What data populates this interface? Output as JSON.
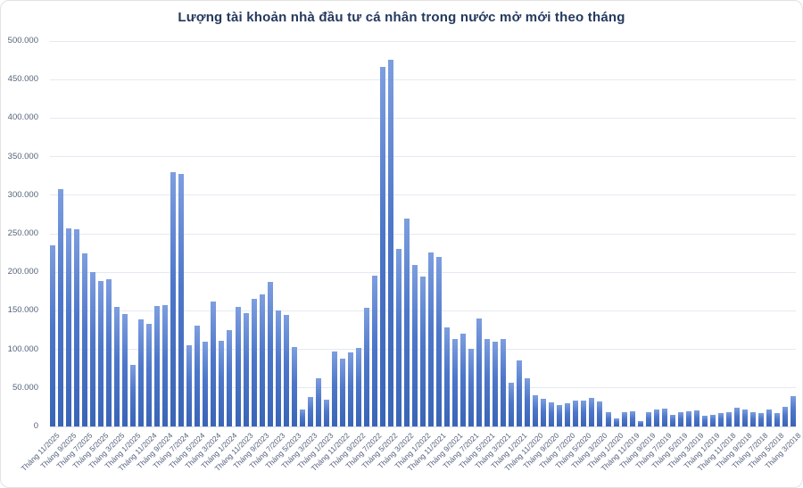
{
  "card": {
    "title": "Lượng tài khoản nhà đầu tư cá nhân trong nước mở mới theo tháng"
  },
  "colors": {
    "title": "#24395e",
    "bar_base": "#4472C4",
    "bar_gradient_top": "#7d9edf",
    "bar_gradient_bottom": "#3a64b6",
    "axis_label": "#55627c",
    "gridline": "#e4e9f1",
    "card_border": "#e2e2e2"
  },
  "chart_data": {
    "type": "bar",
    "title": "Lượng tài khoản nhà đầu tư cá nhân trong nước mở mới theo tháng",
    "xlabel": "",
    "ylabel": "",
    "ylim": [
      0,
      500000
    ],
    "grid": true,
    "legend": false,
    "y_tick_labels": [
      "500.000",
      "450.000",
      "400.000",
      "350.000",
      "300.000",
      "250.000",
      "200.000",
      "150.000",
      "100.000",
      "50.000",
      "0"
    ],
    "x_tick_every": 2,
    "categories": [
      "Tháng 11/2025",
      "Tháng 10/2025",
      "Tháng 9/2025",
      "Tháng 8/2025",
      "Tháng 7/2025",
      "Tháng 6/2025",
      "Tháng 5/2025",
      "Tháng 4/2025",
      "Tháng 3/2025",
      "Tháng 2/2025",
      "Tháng 1/2025",
      "Tháng 12/2024",
      "Tháng 11/2024",
      "Tháng 10/2024",
      "Tháng 9/2024",
      "Tháng 8/2024",
      "Tháng 7/2024",
      "Tháng 6/2024",
      "Tháng 5/2024",
      "Tháng 4/2024",
      "Tháng 3/2024",
      "Tháng 2/2024",
      "Tháng 1/2024",
      "Tháng 12/2023",
      "Tháng 11/2023",
      "Tháng 10/2023",
      "Tháng 9/2023",
      "Tháng 8/2023",
      "Tháng 7/2023",
      "Tháng 6/2023",
      "Tháng 5/2023",
      "Tháng 4/2023",
      "Tháng 3/2023",
      "Tháng 2/2023",
      "Tháng 1/2023",
      "Tháng 12/2022",
      "Tháng 11/2022",
      "Tháng 10/2022",
      "Tháng 9/2022",
      "Tháng 8/2022",
      "Tháng 7/2022",
      "Tháng 6/2022",
      "Tháng 5/2022",
      "Tháng 4/2022",
      "Tháng 3/2022",
      "Tháng 2/2022",
      "Tháng 1/2022",
      "Tháng 12/2021",
      "Tháng 11/2021",
      "Tháng 10/2021",
      "Tháng 9/2021",
      "Tháng 8/2021",
      "Tháng 7/2021",
      "Tháng 6/2021",
      "Tháng 5/2021",
      "Tháng 4/2021",
      "Tháng 3/2021",
      "Tháng 2/2021",
      "Tháng 1/2021",
      "Tháng 12/2020",
      "Tháng 11/2020",
      "Tháng 10/2020",
      "Tháng 9/2020",
      "Tháng 8/2020",
      "Tháng 7/2020",
      "Tháng 6/2020",
      "Tháng 5/2020",
      "Tháng 4/2020",
      "Tháng 3/2020",
      "Tháng 2/2020",
      "Tháng 1/2020",
      "Tháng 12/2019",
      "Tháng 11/2019",
      "Tháng 10/2019",
      "Tháng 9/2019",
      "Tháng 8/2019",
      "Tháng 7/2019",
      "Tháng 6/2019",
      "Tháng 5/2019",
      "Tháng 4/2019",
      "Tháng 3/2019",
      "Tháng 2/2019",
      "Tháng 1/2019",
      "Tháng 12/2018",
      "Tháng 11/2018",
      "Tháng 10/2018",
      "Tháng 9/2018",
      "Tháng 8/2018",
      "Tháng 7/2018",
      "Tháng 6/2018",
      "Tháng 5/2018",
      "Tháng 4/2018",
      "Tháng 3/2018"
    ],
    "values": [
      235000,
      308000,
      257000,
      256000,
      225000,
      200000,
      189000,
      191000,
      155000,
      146000,
      80000,
      139000,
      133000,
      156000,
      157000,
      330000,
      328000,
      105000,
      131000,
      110000,
      162000,
      111000,
      125000,
      155000,
      147000,
      165000,
      171000,
      187000,
      150000,
      145000,
      103000,
      22000,
      38000,
      63000,
      35000,
      97000,
      88000,
      96000,
      102000,
      154000,
      196000,
      466000,
      476000,
      230000,
      270000,
      210000,
      194000,
      226000,
      220000,
      129000,
      114000,
      120000,
      101000,
      140000,
      113000,
      110000,
      113000,
      57000,
      86000,
      63000,
      41000,
      36000,
      31000,
      28000,
      30000,
      34000,
      34000,
      37000,
      32000,
      18000,
      10000,
      19000,
      20000,
      7000,
      19000,
      22000,
      23000,
      15000,
      18000,
      20000,
      21000,
      14000,
      15000,
      17000,
      19000,
      24000,
      22000,
      19000,
      17000,
      22000,
      17000,
      26000,
      39000
    ]
  }
}
